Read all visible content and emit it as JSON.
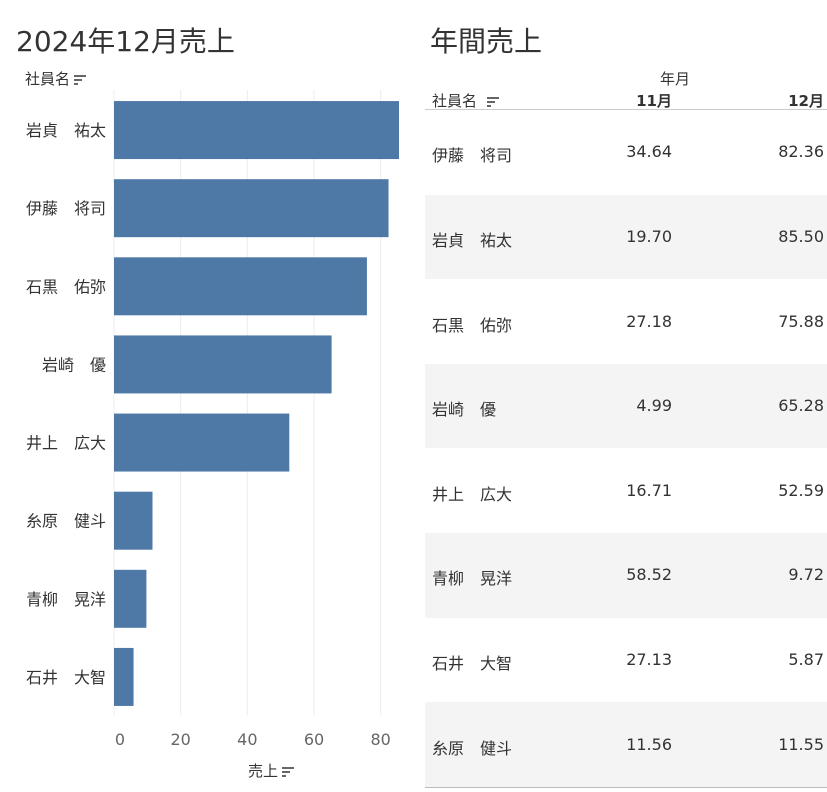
{
  "left": {
    "title": "2024年12月売上",
    "row_header": "社員名",
    "x_label": "売上"
  },
  "right": {
    "title": "年間売上",
    "row_header": "社員名",
    "column_group": "年月",
    "columns": [
      "11月",
      "12月"
    ],
    "rows": [
      {
        "name": "伊藤　将司",
        "values": [
          "34.64",
          "82.36"
        ]
      },
      {
        "name": "岩貞　祐太",
        "values": [
          "19.70",
          "85.50"
        ]
      },
      {
        "name": "石黒　佑弥",
        "values": [
          "27.18",
          "75.88"
        ]
      },
      {
        "name": "岩崎　優",
        "values": [
          "4.99",
          "65.28"
        ]
      },
      {
        "name": "井上　広大",
        "values": [
          "16.71",
          "52.59"
        ]
      },
      {
        "name": "青柳　晃洋",
        "values": [
          "58.52",
          "9.72"
        ]
      },
      {
        "name": "石井　大智",
        "values": [
          "27.13",
          "5.87"
        ]
      },
      {
        "name": "糸原　健斗",
        "values": [
          "11.56",
          "11.55"
        ]
      }
    ]
  },
  "chart_data": {
    "type": "bar",
    "orientation": "horizontal",
    "categories": [
      "岩貞　祐太",
      "伊藤　将司",
      "石黒　佑弥",
      "岩崎　優",
      "井上　広大",
      "糸原　健斗",
      "青柳　晃洋",
      "石井　大智"
    ],
    "values": [
      85.5,
      82.36,
      75.88,
      65.28,
      52.59,
      11.55,
      9.72,
      5.87
    ],
    "title": "2024年12月売上",
    "xlabel": "売上",
    "ylabel": "社員名",
    "xlim": [
      0,
      90
    ],
    "xticks": [
      0,
      20,
      40,
      60,
      80
    ],
    "grid": true,
    "bar_color": "#4e79a7"
  }
}
